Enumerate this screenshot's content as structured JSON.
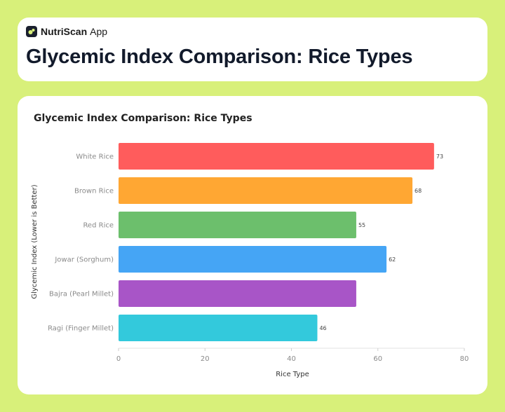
{
  "header": {
    "brand_name": "NutriScan",
    "brand_suffix": "App",
    "page_title": "Glycemic Index Comparison: Rice Types"
  },
  "chart_data": {
    "type": "bar",
    "orientation": "horizontal",
    "title": "Glycemic Index Comparison: Rice Types",
    "xlabel": "Rice Type",
    "ylabel": "Glycemic Index (Lower is Better)",
    "categories": [
      "White Rice",
      "Brown Rice",
      "Red Rice",
      "Jowar (Sorghum)",
      "Bajra (Pearl Millet)",
      "Ragi (Finger Millet)"
    ],
    "values": [
      73,
      68,
      55,
      62,
      55,
      46
    ],
    "data_labels": [
      "73",
      "68",
      "55",
      "62",
      "",
      "46"
    ],
    "colors": [
      "#ff5c5c",
      "#ffa733",
      "#6cbf6c",
      "#45a5f5",
      "#a855c7",
      "#33c9dc"
    ],
    "xlim": [
      0,
      80
    ],
    "xticks": [
      0,
      20,
      40,
      60,
      80
    ],
    "grid": false
  }
}
